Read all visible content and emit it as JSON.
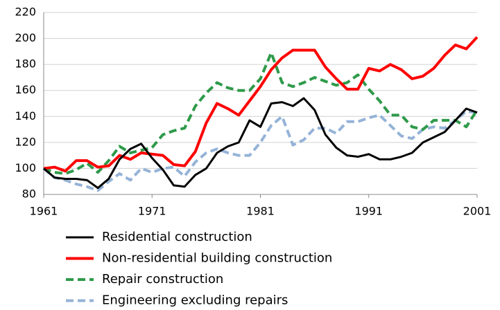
{
  "chart_data": {
    "type": "line",
    "x": [
      1961,
      1962,
      1963,
      1964,
      1965,
      1966,
      1967,
      1968,
      1969,
      1970,
      1971,
      1972,
      1973,
      1974,
      1975,
      1976,
      1977,
      1978,
      1979,
      1980,
      1981,
      1982,
      1983,
      1984,
      1985,
      1986,
      1987,
      1988,
      1989,
      1990,
      1991,
      1992,
      1993,
      1994,
      1995,
      1996,
      1997,
      1998,
      1999,
      2000,
      2001
    ],
    "xlim": [
      1961,
      2001
    ],
    "xticks": [
      1961,
      1971,
      1981,
      1991,
      2001
    ],
    "ylim": [
      80,
      220
    ],
    "yticks": [
      80,
      100,
      120,
      140,
      160,
      180,
      200,
      220
    ],
    "grid": true,
    "series": [
      {
        "name": "Residential construction",
        "color": "#000000",
        "dash": false,
        "values": [
          100,
          93,
          92,
          92,
          91,
          85,
          92,
          107,
          115,
          119,
          108,
          99,
          87,
          86,
          95,
          100,
          112,
          117,
          120,
          137,
          132,
          150,
          151,
          148,
          154,
          145,
          126,
          116,
          110,
          109,
          111,
          107,
          107,
          109,
          112,
          120,
          124,
          128,
          137,
          146,
          143
        ]
      },
      {
        "name": "Non-residential building construction",
        "color": "#ff0000",
        "dash": false,
        "values": [
          100,
          101,
          98,
          106,
          106,
          101,
          102,
          110,
          107,
          112,
          111,
          110,
          103,
          102,
          113,
          135,
          150,
          146,
          141,
          152,
          163,
          176,
          185,
          191,
          191,
          191,
          178,
          169,
          161,
          161,
          177,
          175,
          180,
          176,
          169,
          171,
          177,
          187,
          195,
          192,
          201
        ]
      },
      {
        "name": "Repair construction",
        "color": "#2e9a4a",
        "dash": true,
        "values": [
          100,
          97,
          96,
          99,
          104,
          97,
          106,
          117,
          112,
          114,
          116,
          126,
          129,
          131,
          148,
          158,
          166,
          162,
          160,
          160,
          169,
          189,
          166,
          163,
          166,
          170,
          167,
          164,
          166,
          172,
          161,
          152,
          141,
          141,
          132,
          130,
          137,
          137,
          137,
          132,
          145
        ]
      },
      {
        "name": "Engineering excluding repairs",
        "color": "#95b3d7",
        "dash": true,
        "values": [
          100,
          93,
          91,
          88,
          86,
          83,
          90,
          96,
          91,
          100,
          97,
          100,
          101,
          94,
          105,
          112,
          115,
          112,
          110,
          110,
          120,
          133,
          140,
          118,
          122,
          131,
          131,
          127,
          136,
          136,
          139,
          141,
          133,
          125,
          123,
          130,
          132,
          131,
          137,
          144,
          143
        ]
      }
    ]
  }
}
